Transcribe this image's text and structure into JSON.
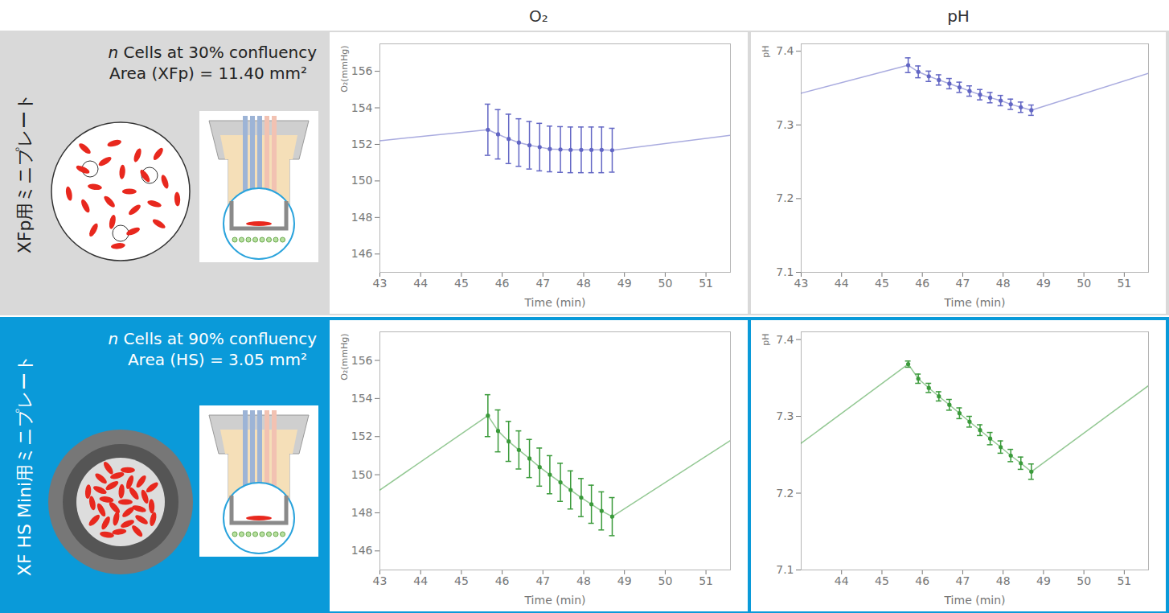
{
  "column_titles": [
    "O₂",
    "pH"
  ],
  "panels": [
    {
      "label": "XFp用ミニプレート",
      "cells_text": "n Cells at 30% confluency",
      "area_text": "Area (XFp) = 11.40 mm²"
    },
    {
      "label": "XF HS Mini用ミニプレート",
      "cells_text": "n Cells at 90% confluency",
      "area_text": "Area (HS) = 3.05 mm²"
    }
  ],
  "chart_data": [
    {
      "type": "line",
      "xlabel": "Time (min)",
      "ylabel": "O₂(mmHg)",
      "xlim": [
        43,
        51.6
      ],
      "xticks": [
        43,
        44,
        45,
        46,
        47,
        48,
        49,
        50,
        51
      ],
      "ylim": [
        145,
        157.5
      ],
      "yticks": [
        146,
        148,
        150,
        152,
        154,
        156
      ],
      "grid": false,
      "marker": "circle",
      "series": [
        {
          "color": "#6266c4",
          "x": [
            43,
            45.65,
            45.9,
            46.16,
            46.41,
            46.67,
            46.92,
            47.17,
            47.43,
            47.68,
            47.94,
            48.19,
            48.44,
            48.7,
            51.6
          ],
          "values": [
            152.2,
            152.8,
            152.55,
            152.3,
            152.1,
            151.95,
            151.85,
            151.75,
            151.72,
            151.7,
            151.7,
            151.7,
            151.7,
            151.68,
            152.5
          ],
          "errors": [
            null,
            1.4,
            1.35,
            1.35,
            1.3,
            1.3,
            1.3,
            1.25,
            1.25,
            1.25,
            1.25,
            1.25,
            1.25,
            1.2,
            null
          ]
        }
      ]
    },
    {
      "type": "line",
      "xlabel": "Time (min)",
      "ylabel": "pH",
      "xlim": [
        43,
        51.6
      ],
      "xticks": [
        43,
        44,
        45,
        46,
        47,
        48,
        49,
        50,
        51
      ],
      "ylim": [
        7.1,
        7.41
      ],
      "yticks": [
        7.1,
        7.2,
        7.3,
        7.4
      ],
      "grid": false,
      "marker": "circle",
      "series": [
        {
          "color": "#6266c4",
          "x": [
            43,
            45.65,
            45.9,
            46.16,
            46.41,
            46.67,
            46.92,
            47.17,
            47.43,
            47.68,
            47.94,
            48.19,
            48.44,
            48.7,
            51.6
          ],
          "values": [
            7.343,
            7.381,
            7.372,
            7.366,
            7.361,
            7.356,
            7.351,
            7.346,
            7.341,
            7.337,
            7.333,
            7.328,
            7.324,
            7.32,
            7.37
          ],
          "errors": [
            null,
            0.01,
            0.008,
            0.007,
            0.007,
            0.007,
            0.007,
            0.007,
            0.007,
            0.007,
            0.007,
            0.007,
            0.007,
            0.007,
            null
          ]
        }
      ]
    },
    {
      "type": "line",
      "xlabel": "Time (min)",
      "ylabel": "O₂(mmHg)",
      "xlim": [
        43,
        51.6
      ],
      "xticks": [
        43,
        44,
        45,
        46,
        47,
        48,
        49,
        50,
        51
      ],
      "ylim": [
        145,
        157.5
      ],
      "yticks": [
        146,
        148,
        150,
        152,
        154,
        156
      ],
      "grid": false,
      "marker": "circle",
      "series": [
        {
          "color": "#3a9a3a",
          "x": [
            43,
            45.65,
            45.9,
            46.16,
            46.41,
            46.67,
            46.92,
            47.17,
            47.43,
            47.68,
            47.94,
            48.19,
            48.44,
            48.7,
            51.6
          ],
          "values": [
            149.2,
            153.1,
            152.3,
            151.75,
            151.3,
            150.85,
            150.4,
            150.0,
            149.6,
            149.2,
            148.8,
            148.45,
            148.1,
            147.8,
            151.8
          ],
          "errors": [
            null,
            1.1,
            1.1,
            1.05,
            1.0,
            1.0,
            1.0,
            1.0,
            1.0,
            1.0,
            1.0,
            1.0,
            1.0,
            1.0,
            null
          ]
        }
      ]
    },
    {
      "type": "line",
      "xlabel": "Time (min)",
      "ylabel": "pH",
      "xlim": [
        43,
        51.6
      ],
      "xticks": [
        44,
        45,
        46,
        47,
        48,
        49,
        50,
        51
      ],
      "ylim": [
        7.1,
        7.41
      ],
      "yticks": [
        7.1,
        7.2,
        7.3,
        7.4
      ],
      "grid": false,
      "marker": "circle",
      "series": [
        {
          "color": "#3a9a3a",
          "x": [
            43,
            45.65,
            45.9,
            46.16,
            46.41,
            46.67,
            46.92,
            47.17,
            47.43,
            47.68,
            47.94,
            48.19,
            48.44,
            48.7,
            51.6
          ],
          "values": [
            7.265,
            7.368,
            7.349,
            7.337,
            7.326,
            7.315,
            7.304,
            7.293,
            7.282,
            7.271,
            7.26,
            7.249,
            7.239,
            7.228,
            7.34
          ],
          "errors": [
            null,
            0.004,
            0.006,
            0.006,
            0.006,
            0.007,
            0.007,
            0.007,
            0.007,
            0.008,
            0.008,
            0.008,
            0.008,
            0.01,
            null
          ]
        }
      ]
    }
  ]
}
